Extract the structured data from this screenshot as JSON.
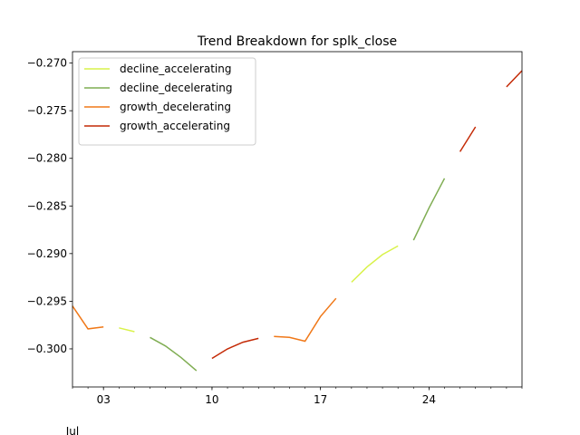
{
  "chart_data": {
    "type": "line",
    "title": "Trend Breakdown for splk_close",
    "xlabel": "",
    "ylabel": "",
    "month_label": "Jul",
    "x_ticks": [
      {
        "day": 3,
        "label": "03"
      },
      {
        "day": 10,
        "label": "10"
      },
      {
        "day": 17,
        "label": "17"
      },
      {
        "day": 24,
        "label": "24"
      }
    ],
    "xlim": [
      1,
      30
    ],
    "ylim": [
      -0.304,
      -0.2688
    ],
    "y_ticks": [
      -0.3,
      -0.295,
      -0.29,
      -0.285,
      -0.28,
      -0.275,
      -0.27
    ],
    "y_tick_labels": [
      "−0.300",
      "−0.295",
      "−0.290",
      "−0.285",
      "−0.280",
      "−0.275",
      "−0.270"
    ],
    "grid": false,
    "legend_position": "top-left",
    "series": [
      {
        "name": "decline_accelerating",
        "color": "#d9f24a",
        "segments": [
          [
            [
              4,
              -0.2978
            ],
            [
              5,
              -0.2982
            ]
          ],
          [
            [
              19,
              -0.293
            ],
            [
              20,
              -0.2914
            ],
            [
              21,
              -0.2901
            ],
            [
              22,
              -0.2892
            ]
          ]
        ]
      },
      {
        "name": "decline_decelerating",
        "color": "#7fad52",
        "segments": [
          [
            [
              6,
              -0.2988
            ],
            [
              7,
              -0.2997
            ],
            [
              8,
              -0.3009
            ],
            [
              9,
              -0.3023
            ]
          ],
          [
            [
              23,
              -0.2886
            ],
            [
              24,
              -0.2852
            ],
            [
              25,
              -0.2821
            ]
          ]
        ]
      },
      {
        "name": "growth_decelerating",
        "color": "#f07818",
        "segments": [
          [
            [
              1,
              -0.2955
            ],
            [
              2,
              -0.2979
            ],
            [
              3,
              -0.2977
            ]
          ],
          [
            [
              14,
              -0.2987
            ],
            [
              15,
              -0.2988
            ],
            [
              16,
              -0.2992
            ],
            [
              17,
              -0.2966
            ],
            [
              18,
              -0.2947
            ]
          ]
        ]
      },
      {
        "name": "growth_accelerating",
        "color": "#c42a06",
        "segments": [
          [
            [
              10,
              -0.301
            ],
            [
              11,
              -0.3
            ],
            [
              12,
              -0.2993
            ],
            [
              13,
              -0.2989
            ]
          ],
          [
            [
              26,
              -0.2793
            ],
            [
              27,
              -0.2767
            ]
          ],
          [
            [
              29,
              -0.2725
            ],
            [
              30,
              -0.2708
            ]
          ]
        ]
      }
    ]
  }
}
